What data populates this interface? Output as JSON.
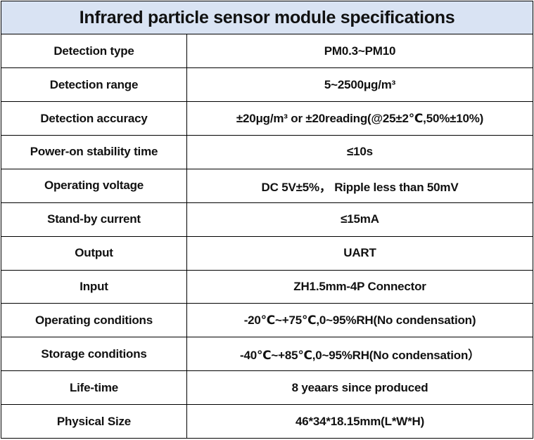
{
  "table": {
    "title": "Infrared particle sensor module specifications",
    "header_color": "#d9e3f3",
    "rows": [
      {
        "label": "Detection type",
        "value": "PM0.3~PM10"
      },
      {
        "label": "Detection range",
        "value": "5~2500μg/m³"
      },
      {
        "label": "Detection accuracy",
        "value": "±20μg/m³ or ±20reading(@25±2℃,50%±10%)"
      },
      {
        "label": "Power-on stability time",
        "value": "≤10s"
      },
      {
        "label": "Operating voltage",
        "value": "DC 5V±5%， Ripple less than 50mV"
      },
      {
        "label": "Stand-by current",
        "value": "≤15mA"
      },
      {
        "label": "Output",
        "value": "UART"
      },
      {
        "label": "Input",
        "value": "ZH1.5mm-4P Connector"
      },
      {
        "label": "Operating conditions",
        "value": "-20℃~+75℃,0~95%RH(No condensation)"
      },
      {
        "label": "Storage conditions",
        "value": "-40℃~+85℃,0~95%RH(No condensation）"
      },
      {
        "label": "Life-time",
        "value": "8 yeaars since produced"
      },
      {
        "label": "Physical Size",
        "value": "46*34*18.15mm(L*W*H)"
      }
    ]
  }
}
